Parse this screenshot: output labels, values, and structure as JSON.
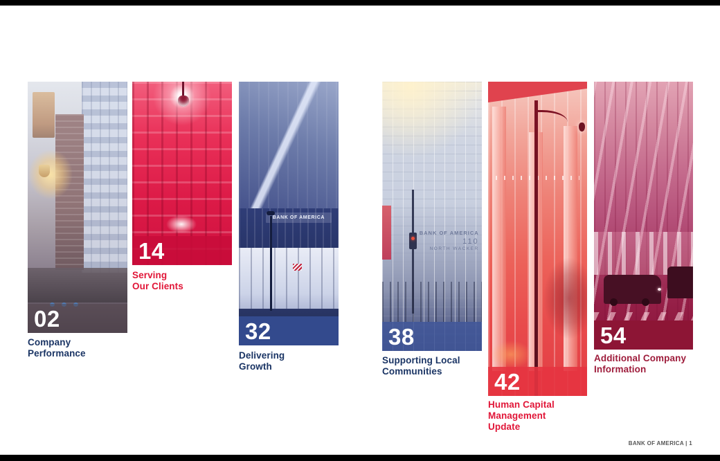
{
  "document": {
    "footer": "BANK OF AMERICA | 1"
  },
  "colors": {
    "brand_red": "#e31837",
    "brand_navy": "#1a3464",
    "maroon": "#9e1c3b",
    "page_background": "#ffffff",
    "letterbox_bars": "#000000"
  },
  "toc_panels": [
    {
      "number": "02",
      "label": "Company\nPerformance",
      "label_color": "navy"
    },
    {
      "number": "14",
      "label": "Serving\nOur Clients",
      "label_color": "red"
    },
    {
      "number": "32",
      "label": "Delivering\nGrowth",
      "label_color": "navy",
      "photo_sign": "BANK OF AMERICA"
    },
    {
      "number": "38",
      "label": "Supporting Local\nCommunities",
      "label_color": "navy",
      "facade_line1": "BANK OF AMERICA",
      "facade_line2": "110",
      "facade_line3": "NORTH WACKER"
    },
    {
      "number": "42",
      "label": "Human Capital\nManagement\nUpdate",
      "label_color": "red"
    },
    {
      "number": "54",
      "label": "Additional Company\nInformation",
      "label_color": "maroon"
    }
  ]
}
